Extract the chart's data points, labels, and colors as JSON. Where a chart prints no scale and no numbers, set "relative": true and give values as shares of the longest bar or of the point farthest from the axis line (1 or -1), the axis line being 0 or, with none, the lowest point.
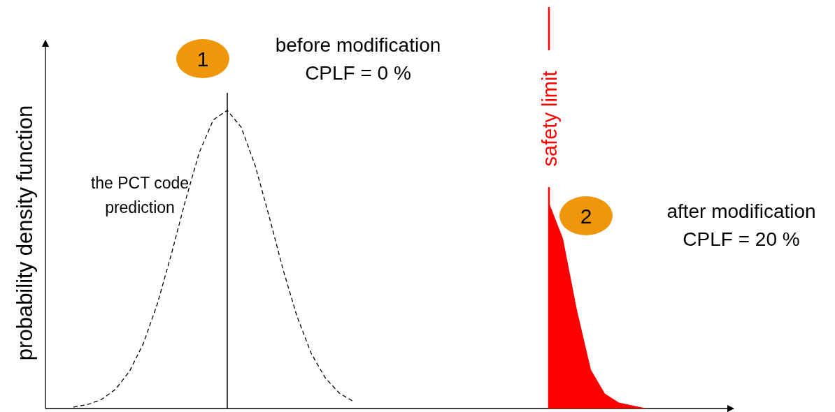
{
  "chart_data": {
    "type": "line",
    "relative": true,
    "ylabel": "probability density function",
    "categories": [
      null,
      null,
      null,
      null,
      null,
      null,
      null,
      null,
      null,
      null,
      null,
      null,
      null,
      null,
      null,
      null,
      null,
      null,
      null,
      null,
      null,
      null,
      null,
      null,
      null,
      null,
      null,
      null,
      null,
      null,
      null,
      null,
      null,
      null,
      null,
      null,
      null,
      null,
      null,
      null,
      null,
      null,
      null,
      null,
      null,
      null,
      null,
      null,
      null
    ],
    "series": [
      {
        "color": "#000000",
        "line_style": "dashed",
        "values": [
          null,
          null,
          0.005,
          0.013,
          0.03,
          0.064,
          0.124,
          0.218,
          0.351,
          0.517,
          0.696,
          0.859,
          0.968,
          1,
          0.943,
          0.814,
          0.643,
          0.464,
          0.307,
          0.185,
          0.103,
          0.052,
          0.024,
          null,
          null,
          null,
          null,
          null,
          null,
          null,
          null,
          null,
          null,
          null,
          null,
          null,
          null,
          null,
          null,
          null,
          null,
          null,
          null,
          null,
          null,
          null,
          null,
          null,
          null
        ]
      },
      {
        "type": "area",
        "color": "#ff0000",
        "values": [
          null,
          null,
          null,
          null,
          null,
          null,
          null,
          null,
          null,
          null,
          null,
          null,
          null,
          null,
          null,
          null,
          null,
          null,
          null,
          null,
          null,
          null,
          null,
          null,
          null,
          null,
          null,
          null,
          null,
          null,
          null,
          null,
          null,
          null,
          null,
          null,
          0.69,
          0.57,
          0.33,
          0.13,
          0.05,
          0.02,
          0.01,
          0,
          null,
          null,
          null,
          null,
          null
        ]
      }
    ],
    "annotations": [
      "1",
      "before modification",
      "CPLF = 0 %",
      "2",
      "after modification",
      "CPLF = 20 %",
      "the PCT code",
      "prediction",
      "safety limit"
    ]
  }
}
